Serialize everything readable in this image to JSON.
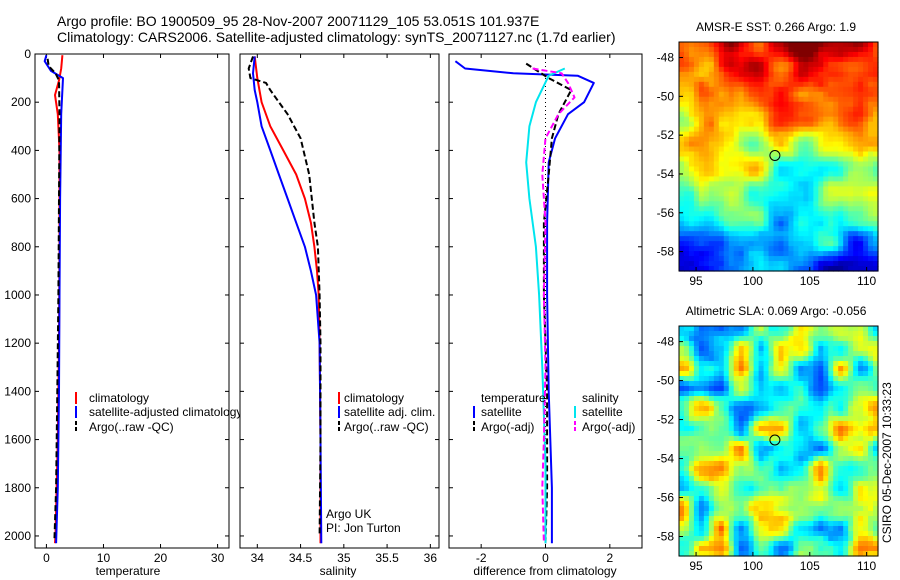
{
  "title_line1": "Argo profile: BO 1900509_95 28-Nov-2007 20071129_105 53.051S 101.937E",
  "title_line2": "Climatology: CARS2006. Satellite-adjusted climatology: synTS_20071127.nc (1.7d earlier)",
  "side_text": "CSIRO 05-Dec-2007 10:33:23",
  "colors": {
    "climatology": "#ff0000",
    "satellite": "#0000ff",
    "argo": "#000000",
    "satellite_diff_salinity": "#00e5ee",
    "argo_diff_salinity": "#ff00ff"
  },
  "chart_data": [
    {
      "type": "line",
      "name": "temperature-profile",
      "xlabel": "temperature",
      "xlim": [
        -2,
        32
      ],
      "ylim": [
        0,
        2050
      ],
      "y_reversed": true,
      "xticks": [
        0,
        10,
        20,
        30
      ],
      "yticks": [
        0,
        200,
        400,
        600,
        800,
        1000,
        1200,
        1400,
        1600,
        1800,
        2000
      ],
      "legend": [
        "climatology",
        "satellite-adjusted climatology",
        "Argo(..raw -QC)"
      ],
      "series": [
        {
          "name": "climatology",
          "points": [
            [
              2.8,
              5
            ],
            [
              2.6,
              60
            ],
            [
              2.2,
              110
            ],
            [
              1.5,
              170
            ],
            [
              2.0,
              250
            ],
            [
              2.3,
              400
            ],
            [
              2.3,
              800
            ],
            [
              2.2,
              1200
            ],
            [
              2.0,
              1600
            ],
            [
              1.6,
              2000
            ],
            [
              1.5,
              2030
            ]
          ]
        },
        {
          "name": "satellite-adjusted climatology",
          "points": [
            [
              0.0,
              5
            ],
            [
              -0.3,
              30
            ],
            [
              0.8,
              70
            ],
            [
              2.9,
              100
            ],
            [
              2.6,
              250
            ],
            [
              2.4,
              600
            ],
            [
              2.3,
              1000
            ],
            [
              2.2,
              1400
            ],
            [
              2.0,
              1800
            ],
            [
              1.7,
              2030
            ]
          ]
        },
        {
          "name": "Argo(..raw -QC)",
          "points": [
            [
              0.2,
              20
            ],
            [
              0.4,
              50
            ],
            [
              1.6,
              80
            ],
            [
              2.2,
              110
            ],
            [
              2.3,
              250
            ],
            [
              2.2,
              600
            ],
            [
              2.1,
              1000
            ],
            [
              1.9,
              1400
            ],
            [
              1.7,
              1800
            ],
            [
              1.4,
              2020
            ]
          ]
        }
      ]
    },
    {
      "type": "line",
      "name": "salinity-profile",
      "xlabel": "salinity",
      "xlim": [
        33.8,
        36.1
      ],
      "ylim": [
        0,
        2050
      ],
      "y_reversed": true,
      "xticks": [
        34,
        34.5,
        35,
        35.5,
        36
      ],
      "xticklabels": [
        "34",
        "34.5",
        "35",
        "35.5",
        "36"
      ],
      "yticks": [
        0,
        200,
        400,
        600,
        800,
        1000,
        1200,
        1400,
        1600,
        1800,
        2000
      ],
      "legend": [
        "climatology",
        "satellite adj. clim.",
        "Argo(..raw -QC)"
      ],
      "annotations": [
        "Argo UK",
        "PI: Jon Turton"
      ],
      "series": [
        {
          "name": "climatology",
          "points": [
            [
              33.97,
              10
            ],
            [
              34.0,
              100
            ],
            [
              34.05,
              200
            ],
            [
              34.15,
              300
            ],
            [
              34.3,
              400
            ],
            [
              34.45,
              500
            ],
            [
              34.55,
              600
            ],
            [
              34.62,
              700
            ],
            [
              34.66,
              800
            ],
            [
              34.69,
              900
            ],
            [
              34.71,
              1000
            ],
            [
              34.72,
              1200
            ],
            [
              34.73,
              1600
            ],
            [
              34.73,
              2030
            ]
          ]
        },
        {
          "name": "satellite adj. clim.",
          "points": [
            [
              33.97,
              10
            ],
            [
              33.95,
              80
            ],
            [
              33.97,
              150
            ],
            [
              34.0,
              200
            ],
            [
              34.05,
              300
            ],
            [
              34.15,
              400
            ],
            [
              34.25,
              500
            ],
            [
              34.35,
              600
            ],
            [
              34.45,
              700
            ],
            [
              34.55,
              800
            ],
            [
              34.62,
              900
            ],
            [
              34.68,
              1000
            ],
            [
              34.72,
              1200
            ],
            [
              34.73,
              1600
            ],
            [
              34.74,
              2030
            ]
          ]
        },
        {
          "name": "Argo(..raw -QC)",
          "points": [
            [
              33.95,
              10
            ],
            [
              33.9,
              60
            ],
            [
              33.92,
              100
            ],
            [
              34.1,
              120
            ],
            [
              34.15,
              150
            ],
            [
              34.25,
              200
            ],
            [
              34.35,
              250
            ],
            [
              34.5,
              350
            ],
            [
              34.6,
              500
            ],
            [
              34.66,
              700
            ],
            [
              34.7,
              800
            ],
            [
              34.72,
              1000
            ],
            [
              34.73,
              1200
            ],
            [
              34.73,
              1600
            ],
            [
              34.72,
              2000
            ]
          ]
        }
      ]
    },
    {
      "type": "line",
      "name": "difference-profile",
      "xlabel": "difference from climatology",
      "xlim": [
        -3,
        3
      ],
      "ylim": [
        0,
        2050
      ],
      "y_reversed": true,
      "xticks": [
        -2,
        0,
        2
      ],
      "yticks": [
        0,
        200,
        400,
        600,
        800,
        1000,
        1200,
        1400,
        1600,
        1800,
        2000
      ],
      "zero_line": true,
      "legend_headers": [
        "temperature",
        "salinity"
      ],
      "legend": [
        "satellite",
        "Argo(-adj)",
        "satellite",
        "Argo(-adj)"
      ],
      "series": [
        {
          "name": "satellite",
          "group": "temperature",
          "points": [
            [
              -2.8,
              30
            ],
            [
              -2.5,
              60
            ],
            [
              -1.0,
              80
            ],
            [
              1.0,
              90
            ],
            [
              1.5,
              120
            ],
            [
              1.2,
              200
            ],
            [
              0.7,
              250
            ],
            [
              0.3,
              350
            ],
            [
              0.1,
              450
            ],
            [
              0.05,
              700
            ],
            [
              0.05,
              1000
            ],
            [
              0.1,
              1400
            ],
            [
              0.2,
              1800
            ],
            [
              0.2,
              2030
            ]
          ]
        },
        {
          "name": "Argo(-adj)",
          "group": "temperature",
          "points": [
            [
              -0.6,
              40
            ],
            [
              0.1,
              100
            ],
            [
              0.8,
              150
            ],
            [
              0.4,
              250
            ],
            [
              0.2,
              350
            ],
            [
              0.1,
              500
            ],
            [
              -0.05,
              700
            ],
            [
              -0.05,
              1000
            ],
            [
              0.05,
              1400
            ],
            [
              0.05,
              1800
            ],
            [
              0.0,
              2030
            ]
          ]
        },
        {
          "name": "satellite",
          "group": "salinity",
          "points": [
            [
              0.6,
              60
            ],
            [
              0.1,
              90
            ],
            [
              -0.3,
              200
            ],
            [
              -0.5,
              300
            ],
            [
              -0.6,
              450
            ],
            [
              -0.5,
              600
            ],
            [
              -0.3,
              800
            ],
            [
              -0.2,
              1000
            ],
            [
              -0.1,
              1300
            ],
            [
              0.0,
              1700
            ],
            [
              0.0,
              2030
            ]
          ]
        },
        {
          "name": "Argo(-adj)",
          "group": "salinity",
          "points": [
            [
              -0.4,
              60
            ],
            [
              0.5,
              80
            ],
            [
              0.7,
              120
            ],
            [
              0.9,
              180
            ],
            [
              0.4,
              250
            ],
            [
              0.0,
              350
            ],
            [
              -0.1,
              500
            ],
            [
              0.0,
              700
            ],
            [
              -0.05,
              1000
            ],
            [
              0.0,
              1300
            ],
            [
              -0.05,
              1600
            ],
            [
              -0.1,
              1800
            ],
            [
              -0.05,
              2030
            ]
          ]
        }
      ]
    },
    {
      "type": "heatmap",
      "name": "amsr-sst-map",
      "title": "AMSR-E SST: 0.266 Argo: 1.9",
      "xlim": [
        93.5,
        111
      ],
      "ylim": [
        -59,
        -47.2
      ],
      "xticks": [
        95,
        100,
        105,
        110
      ],
      "yticks": [
        -48,
        -50,
        -52,
        -54,
        -56,
        -58
      ],
      "marker": {
        "lon": 101.937,
        "lat": -53.051
      }
    },
    {
      "type": "heatmap",
      "name": "altimetric-sla-map",
      "title": "Altimetric SLA: 0.069 Argo: -0.056",
      "xlim": [
        93.5,
        111
      ],
      "ylim": [
        -59,
        -47.2
      ],
      "xticks": [
        95,
        100,
        105,
        110
      ],
      "yticks": [
        -48,
        -50,
        -52,
        -54,
        -56,
        -58
      ],
      "marker": {
        "lon": 101.937,
        "lat": -53.051
      }
    }
  ]
}
